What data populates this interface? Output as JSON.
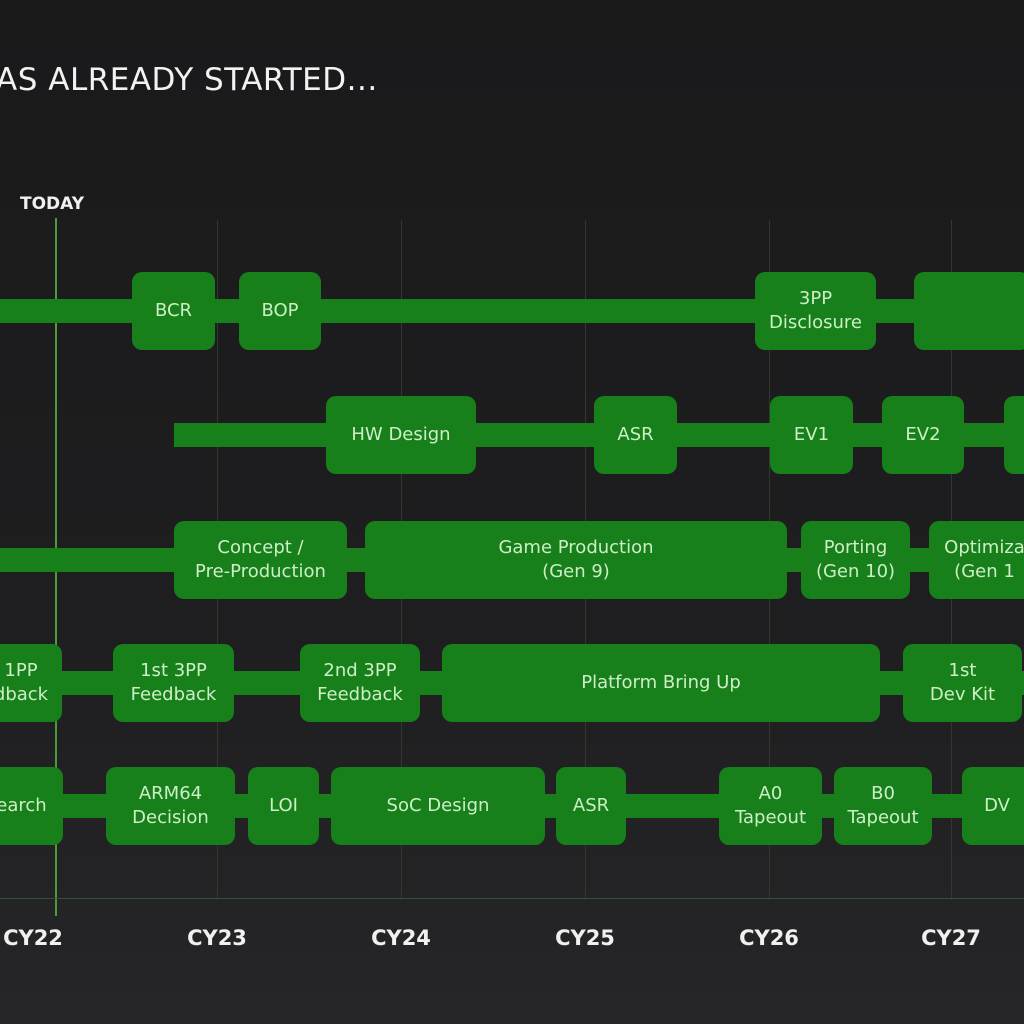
{
  "title": "AS ALREADY STARTED...",
  "today_label": "TODAY",
  "colors": {
    "accent": "#17801a",
    "box_text": "#cdeec6",
    "background": "#1c1c1e"
  },
  "years": [
    "CY22",
    "CY23",
    "CY24",
    "CY25",
    "CY26",
    "CY27"
  ],
  "rows": [
    {
      "items": [
        [
          "BCR"
        ],
        [
          "BOP"
        ],
        [
          "3PP",
          "Disclosure"
        ],
        [
          ""
        ]
      ]
    },
    {
      "items": [
        [
          "HW Design"
        ],
        [
          "ASR"
        ],
        [
          "EV1"
        ],
        [
          "EV2"
        ],
        [
          ""
        ]
      ]
    },
    {
      "items": [
        [
          "Concept /",
          "Pre-Production"
        ],
        [
          "Game Production",
          "(Gen 9)"
        ],
        [
          "Porting",
          "(Gen 10)"
        ],
        [
          "Optimiza",
          "(Gen 1"
        ]
      ]
    },
    {
      "items": [
        [
          "1PP",
          "dback"
        ],
        [
          "1st 3PP",
          "Feedback"
        ],
        [
          "2nd 3PP",
          "Feedback"
        ],
        [
          "Platform Bring Up"
        ],
        [
          "1st",
          "Dev Kit"
        ]
      ]
    },
    {
      "items": [
        [
          "earch"
        ],
        [
          "ARM64",
          "Decision"
        ],
        [
          "LOI"
        ],
        [
          "SoC Design"
        ],
        [
          "ASR"
        ],
        [
          "A0",
          "Tapeout"
        ],
        [
          "B0",
          "Tapeout"
        ],
        [
          "DV"
        ]
      ]
    }
  ]
}
